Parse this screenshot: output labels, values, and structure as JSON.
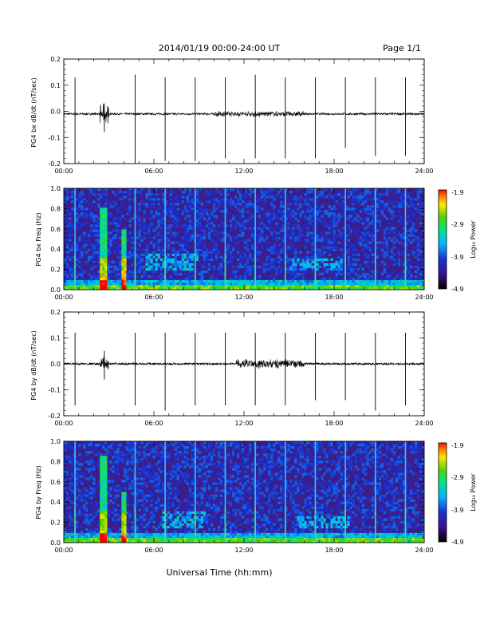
{
  "header": {
    "title": "2014/01/19  00:00-24:00 UT",
    "page": "Page 1/1"
  },
  "footer": {
    "xlabel": "Universal Time (hh:mm)"
  },
  "colorbar": {
    "title": "Log₁₀ Power",
    "ticks": [
      "-1.9",
      "-2.9",
      "-3.9",
      "-4.9"
    ],
    "range": [
      -4.9,
      -1.9
    ]
  },
  "colors": {
    "axis": "#000000",
    "trace": "#000000",
    "background": "#ffffff",
    "spectrogram_bg": "#3a1f8c"
  },
  "chart_data": [
    {
      "type": "line",
      "panel": "bx-dbdt",
      "ylabel": "PG4 bx dB/dt (nT/sec)",
      "xlim": [
        0,
        24
      ],
      "ylim": [
        -0.2,
        0.2
      ],
      "xticks": [
        "00:00",
        "06:00",
        "12:00",
        "18:00",
        "24:00"
      ],
      "yticks": [
        "0.2",
        "0.1",
        "0.0",
        "-0.1",
        "-0.2"
      ],
      "baseline": -0.01,
      "spikes": [
        {
          "t": 0.75,
          "hi": 0.13,
          "lo": -0.2
        },
        {
          "t": 2.7,
          "hi": 0.03,
          "lo": -0.08
        },
        {
          "t": 4.75,
          "hi": 0.14,
          "lo": -0.2
        },
        {
          "t": 6.75,
          "hi": 0.13,
          "lo": -0.19
        },
        {
          "t": 8.75,
          "hi": 0.13,
          "lo": -0.19
        },
        {
          "t": 10.75,
          "hi": 0.13,
          "lo": -0.18
        },
        {
          "t": 12.75,
          "hi": 0.14,
          "lo": -0.18
        },
        {
          "t": 14.75,
          "hi": 0.13,
          "lo": -0.18
        },
        {
          "t": 16.75,
          "hi": 0.13,
          "lo": -0.18
        },
        {
          "t": 18.75,
          "hi": 0.13,
          "lo": -0.14
        },
        {
          "t": 20.75,
          "hi": 0.13,
          "lo": -0.17
        },
        {
          "t": 22.75,
          "hi": 0.13,
          "lo": -0.17
        }
      ],
      "noise_bursts": [
        {
          "t0": 2.4,
          "t1": 3.0,
          "amp": 0.04
        },
        {
          "t0": 10.0,
          "t1": 16.0,
          "amp": 0.012
        }
      ]
    },
    {
      "type": "heatmap",
      "panel": "bx-spectrogram",
      "ylabel": "PG4 bx Freq (Hz)",
      "xlim": [
        0,
        24
      ],
      "ylim": [
        0,
        1.0
      ],
      "xticks": [
        "00:00",
        "06:00",
        "12:00",
        "18:00",
        "24:00"
      ],
      "yticks": [
        "1.0",
        "0.8",
        "0.6",
        "0.4",
        "0.2",
        "0.0"
      ],
      "value_range": [
        -4.9,
        -1.9
      ],
      "vertical_lines": [
        0.75,
        4.75,
        6.75,
        8.75,
        10.75,
        12.75,
        14.75,
        16.75,
        18.75,
        20.75,
        22.75
      ],
      "hot_columns": [
        {
          "t": 2.6,
          "width": 0.4,
          "fmax": 0.8
        },
        {
          "t": 4.0,
          "width": 0.25,
          "fmax": 0.6
        }
      ],
      "bands": [
        {
          "t0": 5.5,
          "t1": 9.0,
          "fmin": 0.2,
          "fmax": 0.35
        },
        {
          "t0": 15.0,
          "t1": 18.5,
          "fmin": 0.2,
          "fmax": 0.3
        }
      ]
    },
    {
      "type": "line",
      "panel": "by-dbdt",
      "ylabel": "PG4 by dB/dt (nT/sec)",
      "xlim": [
        0,
        24
      ],
      "ylim": [
        -0.2,
        0.2
      ],
      "xticks": [
        "00:00",
        "06:00",
        "12:00",
        "18:00",
        "24:00"
      ],
      "yticks": [
        "0.2",
        "0.1",
        "0.0",
        "-0.1",
        "-0.2"
      ],
      "baseline": 0.0,
      "spikes": [
        {
          "t": 0.75,
          "hi": 0.12,
          "lo": -0.16
        },
        {
          "t": 2.7,
          "hi": 0.05,
          "lo": -0.06
        },
        {
          "t": 4.75,
          "hi": 0.12,
          "lo": -0.16
        },
        {
          "t": 6.75,
          "hi": 0.12,
          "lo": -0.18
        },
        {
          "t": 8.75,
          "hi": 0.12,
          "lo": -0.16
        },
        {
          "t": 10.75,
          "hi": 0.12,
          "lo": -0.16
        },
        {
          "t": 12.75,
          "hi": 0.12,
          "lo": -0.16
        },
        {
          "t": 14.75,
          "hi": 0.12,
          "lo": -0.16
        },
        {
          "t": 16.75,
          "hi": 0.12,
          "lo": -0.14
        },
        {
          "t": 18.75,
          "hi": 0.12,
          "lo": -0.14
        },
        {
          "t": 20.75,
          "hi": 0.12,
          "lo": -0.18
        },
        {
          "t": 22.75,
          "hi": 0.12,
          "lo": -0.16
        }
      ],
      "noise_bursts": [
        {
          "t0": 2.4,
          "t1": 3.0,
          "amp": 0.03
        },
        {
          "t0": 11.5,
          "t1": 16.0,
          "amp": 0.02
        }
      ]
    },
    {
      "type": "heatmap",
      "panel": "by-spectrogram",
      "ylabel": "PG4 by Freq (Hz)",
      "xlim": [
        0,
        24
      ],
      "ylim": [
        0,
        1.0
      ],
      "xticks": [
        "00:00",
        "06:00",
        "12:00",
        "18:00",
        "24:00"
      ],
      "yticks": [
        "1.0",
        "0.8",
        "0.6",
        "0.4",
        "0.2",
        "0.0"
      ],
      "value_range": [
        -4.9,
        -1.9
      ],
      "vertical_lines": [
        0.75,
        4.75,
        6.75,
        8.75,
        10.75,
        12.75,
        14.75,
        16.75,
        18.75,
        20.75,
        22.75
      ],
      "hot_columns": [
        {
          "t": 2.6,
          "width": 0.4,
          "fmax": 0.85
        },
        {
          "t": 4.0,
          "width": 0.25,
          "fmax": 0.5
        }
      ],
      "bands": [
        {
          "t0": 6.5,
          "t1": 9.5,
          "fmin": 0.15,
          "fmax": 0.3
        },
        {
          "t0": 15.5,
          "t1": 19.0,
          "fmin": 0.15,
          "fmax": 0.25
        }
      ]
    }
  ]
}
